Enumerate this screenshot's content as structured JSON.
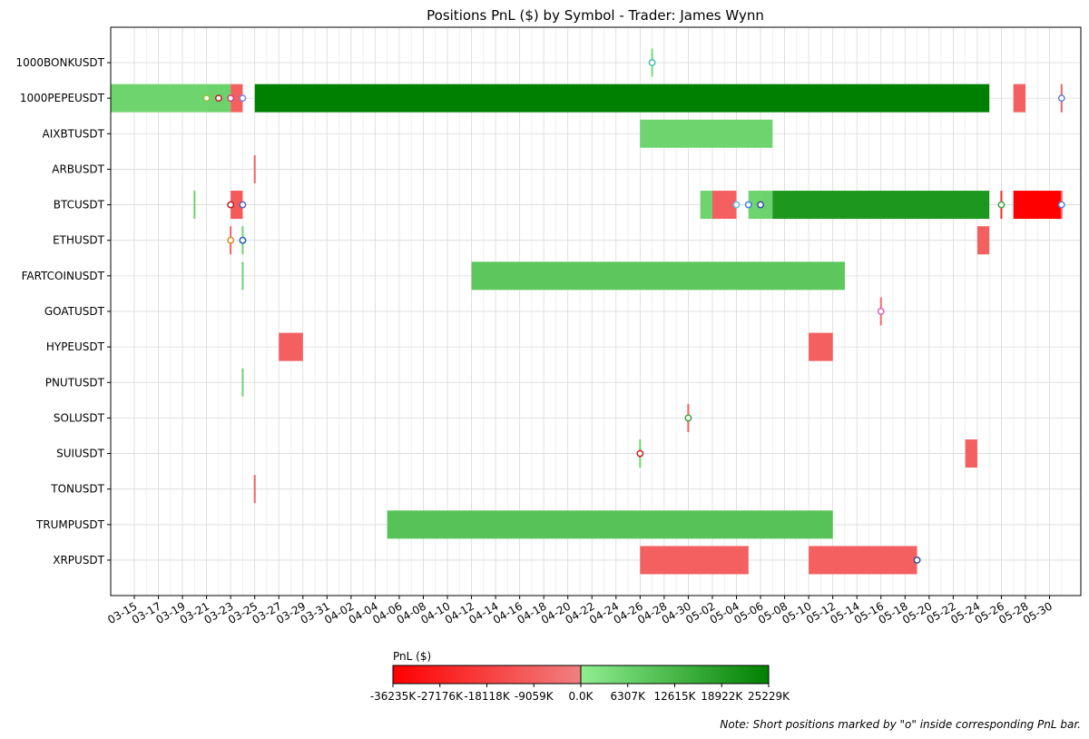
{
  "chart_data": {
    "type": "bar",
    "subtype": "gantt-timeline",
    "title": "Positions PnL ($) by Symbol - Trader: James Wynn",
    "xlabel": "",
    "ylabel": "",
    "grid": true,
    "x_range": [
      "2025-03-13",
      "2025-05-31"
    ],
    "x_tick_labels": [
      "03-15",
      "03-17",
      "03-19",
      "03-21",
      "03-23",
      "03-25",
      "03-27",
      "03-29",
      "03-31",
      "04-02",
      "04-04",
      "04-06",
      "04-08",
      "04-10",
      "04-12",
      "04-14",
      "04-16",
      "04-18",
      "04-20",
      "04-22",
      "04-24",
      "04-26",
      "04-28",
      "04-30",
      "05-02",
      "05-04",
      "05-06",
      "05-08",
      "05-10",
      "05-12",
      "05-14",
      "05-16",
      "05-18",
      "05-20",
      "05-22",
      "05-24",
      "05-26",
      "05-28",
      "05-30"
    ],
    "symbols": [
      "1000BONKUSDT",
      "1000PEPEUSDT",
      "AIXBTUSDT",
      "ARBUSDT",
      "BTCUSDT",
      "ETHUSDT",
      "FARTCOINUSDT",
      "GOATUSDT",
      "HYPEUSDT",
      "PNUTUSDT",
      "SOLUSDT",
      "SUIUSDT",
      "TONUSDT",
      "TRUMPUSDT",
      "XRPUSDT"
    ],
    "positions": [
      {
        "symbol": "1000BONKUSDT",
        "start": "2025-04-27",
        "end": "2025-04-27",
        "pnl_k": 5000
      },
      {
        "symbol": "1000PEPEUSDT",
        "start": "2025-03-13",
        "end": "2025-03-21",
        "pnl_k": 6000
      },
      {
        "symbol": "1000PEPEUSDT",
        "start": "2025-03-21",
        "end": "2025-03-23",
        "pnl_k": 6300
      },
      {
        "symbol": "1000PEPEUSDT",
        "start": "2025-03-23",
        "end": "2025-03-24",
        "pnl_k": -9000
      },
      {
        "symbol": "1000PEPEUSDT",
        "start": "2025-03-25",
        "end": "2025-05-25",
        "pnl_k": 25229
      },
      {
        "symbol": "1000PEPEUSDT",
        "start": "2025-05-27",
        "end": "2025-05-28",
        "pnl_k": -9000
      },
      {
        "symbol": "1000PEPEUSDT",
        "start": "2025-05-31",
        "end": "2025-05-31",
        "pnl_k": -9000
      },
      {
        "symbol": "AIXBTUSDT",
        "start": "2025-04-26",
        "end": "2025-05-07",
        "pnl_k": 6000
      },
      {
        "symbol": "ARBUSDT",
        "start": "2025-03-25",
        "end": "2025-03-25",
        "pnl_k": -8000
      },
      {
        "symbol": "BTCUSDT",
        "start": "2025-03-20",
        "end": "2025-03-20",
        "pnl_k": 6000
      },
      {
        "symbol": "BTCUSDT",
        "start": "2025-03-23",
        "end": "2025-03-24",
        "pnl_k": -11000
      },
      {
        "symbol": "BTCUSDT",
        "start": "2025-05-01",
        "end": "2025-05-02",
        "pnl_k": 6000
      },
      {
        "symbol": "BTCUSDT",
        "start": "2025-05-02",
        "end": "2025-05-04",
        "pnl_k": -9000
      },
      {
        "symbol": "BTCUSDT",
        "start": "2025-05-05",
        "end": "2025-05-06",
        "pnl_k": 6000
      },
      {
        "symbol": "BTCUSDT",
        "start": "2025-05-06",
        "end": "2025-05-07",
        "pnl_k": 6300
      },
      {
        "symbol": "BTCUSDT",
        "start": "2025-05-07",
        "end": "2025-05-25",
        "pnl_k": 20000
      },
      {
        "symbol": "BTCUSDT",
        "start": "2025-05-26",
        "end": "2025-05-26",
        "pnl_k": -25000
      },
      {
        "symbol": "BTCUSDT",
        "start": "2025-05-27",
        "end": "2025-05-31",
        "pnl_k": -36235
      },
      {
        "symbol": "BTCUSDT",
        "start": "2025-05-31",
        "end": "2025-05-31",
        "pnl_k": -9000
      },
      {
        "symbol": "ETHUSDT",
        "start": "2025-03-23",
        "end": "2025-03-23",
        "pnl_k": -9000
      },
      {
        "symbol": "ETHUSDT",
        "start": "2025-03-24",
        "end": "2025-03-24",
        "pnl_k": 6000
      },
      {
        "symbol": "ETHUSDT",
        "start": "2025-05-24",
        "end": "2025-05-25",
        "pnl_k": -9000
      },
      {
        "symbol": "FARTCOINUSDT",
        "start": "2025-03-24",
        "end": "2025-03-24",
        "pnl_k": 6000
      },
      {
        "symbol": "FARTCOINUSDT",
        "start": "2025-04-12",
        "end": "2025-05-13",
        "pnl_k": 9000
      },
      {
        "symbol": "GOATUSDT",
        "start": "2025-05-16",
        "end": "2025-05-16",
        "pnl_k": -6000
      },
      {
        "symbol": "HYPEUSDT",
        "start": "2025-03-27",
        "end": "2025-03-29",
        "pnl_k": -9000
      },
      {
        "symbol": "HYPEUSDT",
        "start": "2025-05-10",
        "end": "2025-05-12",
        "pnl_k": -9000
      },
      {
        "symbol": "PNUTUSDT",
        "start": "2025-03-24",
        "end": "2025-03-24",
        "pnl_k": 6000
      },
      {
        "symbol": "SOLUSDT",
        "start": "2025-04-30",
        "end": "2025-04-30",
        "pnl_k": -9000
      },
      {
        "symbol": "SUIUSDT",
        "start": "2025-04-26",
        "end": "2025-04-26",
        "pnl_k": 6000
      },
      {
        "symbol": "SUIUSDT",
        "start": "2025-05-23",
        "end": "2025-05-24",
        "pnl_k": -9000
      },
      {
        "symbol": "TONUSDT",
        "start": "2025-03-25",
        "end": "2025-03-25",
        "pnl_k": -8000
      },
      {
        "symbol": "TRUMPUSDT",
        "start": "2025-04-05",
        "end": "2025-05-12",
        "pnl_k": 10000
      },
      {
        "symbol": "XRPUSDT",
        "start": "2025-04-26",
        "end": "2025-05-05",
        "pnl_k": -9000
      },
      {
        "symbol": "XRPUSDT",
        "start": "2025-05-10",
        "end": "2025-05-19",
        "pnl_k": -9000
      }
    ],
    "short_markers": [
      {
        "symbol": "1000BONKUSDT",
        "date": "2025-04-27",
        "color": "#40c0b0"
      },
      {
        "symbol": "1000PEPEUSDT",
        "date": "2025-03-21",
        "color": "#e08a20"
      },
      {
        "symbol": "1000PEPEUSDT",
        "date": "2025-03-21",
        "color": "#90c040"
      },
      {
        "symbol": "1000PEPEUSDT",
        "date": "2025-03-22",
        "color": "#c02020"
      },
      {
        "symbol": "1000PEPEUSDT",
        "date": "2025-03-23",
        "color": "#d04080"
      },
      {
        "symbol": "1000PEPEUSDT",
        "date": "2025-03-24",
        "color": "#8080e0"
      },
      {
        "symbol": "1000PEPEUSDT",
        "date": "2025-05-31",
        "color": "#6080d0"
      },
      {
        "symbol": "BTCUSDT",
        "date": "2025-03-23",
        "color": "#c02020"
      },
      {
        "symbol": "BTCUSDT",
        "date": "2025-03-24",
        "color": "#6060c0"
      },
      {
        "symbol": "BTCUSDT",
        "date": "2025-05-04",
        "color": "#60c0e0"
      },
      {
        "symbol": "BTCUSDT",
        "date": "2025-05-05",
        "color": "#4080e0"
      },
      {
        "symbol": "BTCUSDT",
        "date": "2025-05-06",
        "color": "#3050a0"
      },
      {
        "symbol": "BTCUSDT",
        "date": "2025-05-26",
        "color": "#40a040"
      },
      {
        "symbol": "BTCUSDT",
        "date": "2025-05-31",
        "color": "#6080d0"
      },
      {
        "symbol": "ETHUSDT",
        "date": "2025-03-23",
        "color": "#e08a20"
      },
      {
        "symbol": "ETHUSDT",
        "date": "2025-03-24",
        "color": "#40c0b0"
      },
      {
        "symbol": "ETHUSDT",
        "date": "2025-03-24",
        "color": "#3060c0"
      },
      {
        "symbol": "GOATUSDT",
        "date": "2025-05-16",
        "color": "#e060c0"
      },
      {
        "symbol": "SOLUSDT",
        "date": "2025-04-30",
        "color": "#40a040"
      },
      {
        "symbol": "SUIUSDT",
        "date": "2025-04-26",
        "color": "#c02020"
      },
      {
        "symbol": "XRPUSDT",
        "date": "2025-05-19",
        "color": "#3050a0"
      }
    ],
    "colorbar": {
      "label": "PnL ($)",
      "min_k": -36235,
      "max_k": 25229,
      "ticks": [
        "-36235K",
        "-27176K",
        "-18118K",
        "-9059K",
        "0.0K",
        "6307K",
        "12615K",
        "18922K",
        "25229K"
      ],
      "colors": {
        "neg_low": "#ff0000",
        "neg_high": "#f08080",
        "pos_low": "#90ee90",
        "pos_high": "#008000"
      }
    },
    "note": "Note: Short positions marked by \"o\" inside corresponding PnL bar."
  }
}
